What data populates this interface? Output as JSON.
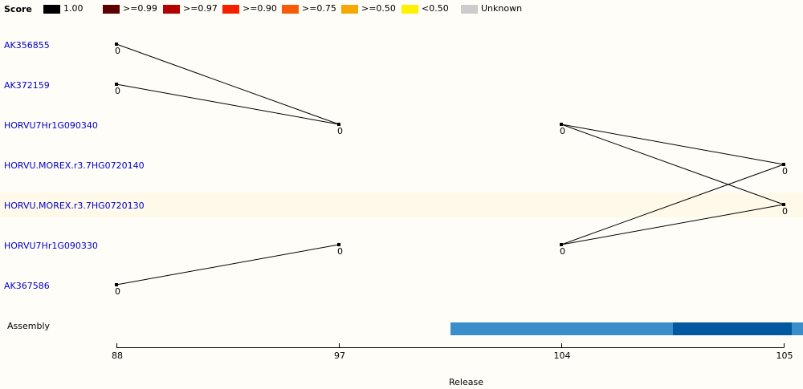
{
  "legend": {
    "title": "Score",
    "items": [
      {
        "label": "1.00",
        "color": "#000000"
      },
      {
        "label": ">=0.99",
        "color": "#5c0000"
      },
      {
        "label": ">=0.97",
        "color": "#b30000"
      },
      {
        "label": ">=0.90",
        "color": "#f52000"
      },
      {
        "label": ">=0.75",
        "color": "#f95a08"
      },
      {
        "label": ">=0.50",
        "color": "#f7a800"
      },
      {
        "label": "<0.50",
        "color": "#fff100"
      },
      {
        "label": "Unknown",
        "color": "#cccccc"
      }
    ]
  },
  "rows": [
    {
      "label": "AK356855"
    },
    {
      "label": "AK372159"
    },
    {
      "label": "HORVU7Hr1G090340"
    },
    {
      "label": "HORVU.MOREX.r3.7HG0720140"
    },
    {
      "label": "HORVU.MOREX.r3.7HG0720130"
    },
    {
      "label": "HORVU7Hr1G090330"
    },
    {
      "label": "AK367586"
    }
  ],
  "assembly_label": "Assembly",
  "axis": {
    "title": "Release",
    "releases": [
      "88",
      "97",
      "104",
      "105"
    ]
  },
  "node_score_label": "0",
  "nodes": [
    {
      "release": "88",
      "row": 0
    },
    {
      "release": "88",
      "row": 1
    },
    {
      "release": "88",
      "row": 6
    },
    {
      "release": "97",
      "row": 2
    },
    {
      "release": "97",
      "row": 5
    },
    {
      "release": "104",
      "row": 2
    },
    {
      "release": "104",
      "row": 5
    },
    {
      "release": "105",
      "row": 3
    },
    {
      "release": "105",
      "row": 4
    }
  ],
  "links": [
    {
      "from": [
        "88",
        0
      ],
      "to": [
        "97",
        2
      ]
    },
    {
      "from": [
        "88",
        1
      ],
      "to": [
        "97",
        2
      ]
    },
    {
      "from": [
        "88",
        6
      ],
      "to": [
        "97",
        5
      ]
    },
    {
      "from": [
        "104",
        2
      ],
      "to": [
        "105",
        3
      ]
    },
    {
      "from": [
        "104",
        2
      ],
      "to": [
        "105",
        4
      ]
    },
    {
      "from": [
        "104",
        5
      ],
      "to": [
        "105",
        3
      ]
    },
    {
      "from": [
        "104",
        5
      ],
      "to": [
        "105",
        4
      ]
    }
  ],
  "assembly_segments": [
    {
      "color": "#3a8fcb"
    },
    {
      "color": "#0359a0"
    },
    {
      "color": "#3a8fcb"
    }
  ]
}
